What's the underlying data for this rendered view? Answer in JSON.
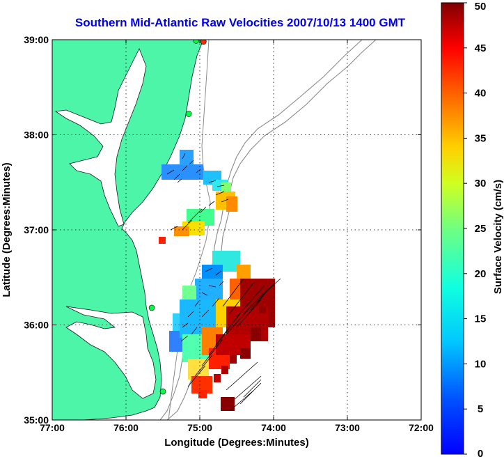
{
  "chart_data": {
    "type": "heatmap",
    "title": "Southern Mid-Atlantic Raw Velocities 2007/10/13 1400 GMT",
    "xlabel": "Longitude (Degrees:Minutes)",
    "ylabel": "Latitude (Degrees:Minutes)",
    "xlim": [
      -77,
      -72
    ],
    "ylim": [
      35,
      39
    ],
    "x_ticks": [
      {
        "value": -77,
        "label": "77:00"
      },
      {
        "value": -76,
        "label": "76:00"
      },
      {
        "value": -75,
        "label": "75:00"
      },
      {
        "value": -74,
        "label": "74:00"
      },
      {
        "value": -73,
        "label": "73:00"
      },
      {
        "value": -72,
        "label": "72:00"
      }
    ],
    "y_ticks": [
      {
        "value": 35,
        "label": "35:00"
      },
      {
        "value": 36,
        "label": "36:00"
      },
      {
        "value": 37,
        "label": "37:00"
      },
      {
        "value": 38,
        "label": "38:00"
      },
      {
        "value": 39,
        "label": "39:00"
      }
    ],
    "grid": true,
    "colorbar": {
      "label": "Surface Velocity (cm/s)",
      "min": 0,
      "max": 50,
      "ticks": [
        "0",
        "5",
        "10",
        "15",
        "20",
        "25",
        "30",
        "35",
        "40",
        "45",
        "50"
      ],
      "colormap": "jet"
    },
    "land_color": "#4cf5a8",
    "velocity_regions": [
      {
        "region": "upper-cluster",
        "lon_range": [
          -75.5,
          -74.7
        ],
        "lat_range": [
          37.5,
          37.7
        ],
        "speed": 7
      },
      {
        "region": "mid-cluster",
        "lon_range": [
          -75.0,
          -74.6
        ],
        "lat_range": [
          36.9,
          37.3
        ],
        "speed": 28
      },
      {
        "region": "southern-west",
        "lon_range": [
          -75.4,
          -74.7
        ],
        "lat_range": [
          35.5,
          36.5
        ],
        "speed": 10
      },
      {
        "region": "southern-east",
        "lon_range": [
          -74.8,
          -74.2
        ],
        "lat_range": [
          35.4,
          36.3
        ],
        "speed": 47
      },
      {
        "region": "southern-tip",
        "lon_range": [
          -74.8,
          -74.6
        ],
        "lat_range": [
          35.2,
          35.4
        ],
        "speed": 45
      }
    ],
    "stations": [
      {
        "lon": -74.95,
        "lat": 38.98,
        "color": "#ff2a00"
      },
      {
        "lon": -75.05,
        "lat": 38.99,
        "color": "#00ff44"
      },
      {
        "lon": -75.15,
        "lat": 38.22,
        "color": "#00ff44"
      },
      {
        "lon": -75.65,
        "lat": 36.18,
        "color": "#00ff44"
      },
      {
        "lon": -75.5,
        "lat": 35.3,
        "color": "#00ff44"
      }
    ]
  }
}
